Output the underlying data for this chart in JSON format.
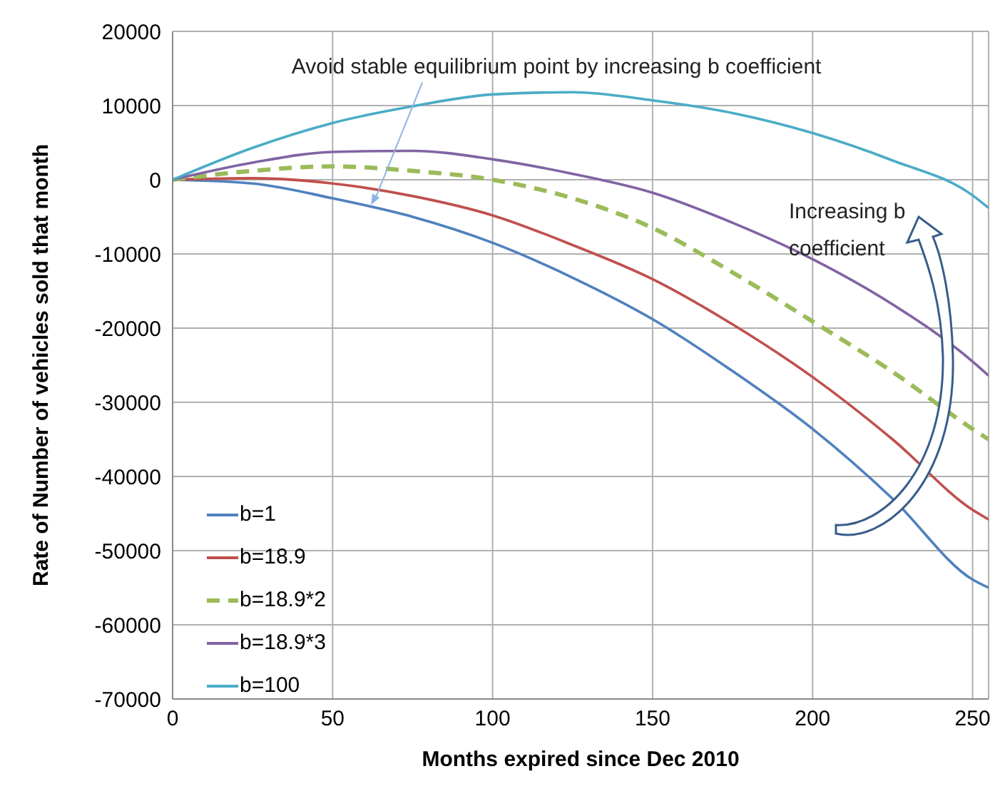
{
  "chart_data": {
    "type": "line",
    "xlabel": "Months expired since Dec 2010",
    "ylabel": "Rate of Number of vehicles sold that month",
    "x": [
      0,
      25,
      50,
      75,
      100,
      125,
      150,
      175,
      200,
      225,
      250,
      255
    ],
    "series": [
      {
        "name": "b=1",
        "color": "#4f81bd",
        "line_style": "solid",
        "values": [
          0,
          -500,
          -2500,
          -5000,
          -8500,
          -13200,
          -18800,
          -25800,
          -33600,
          -43000,
          -53900,
          -55000
        ]
      },
      {
        "name": "b=18.9",
        "color": "#c0504d",
        "line_style": "solid",
        "values": [
          0,
          200,
          -500,
          -2200,
          -4800,
          -8800,
          -13400,
          -19500,
          -26600,
          -35000,
          -44500,
          -45800
        ]
      },
      {
        "name": "b=18.9*2",
        "color": "#9bbb59",
        "line_style": "dashed",
        "values": [
          0,
          1200,
          1800,
          1200,
          0,
          -2500,
          -6500,
          -12500,
          -19100,
          -25900,
          -33600,
          -35000
        ]
      },
      {
        "name": "b=18.9*3",
        "color": "#8064a2",
        "line_style": "solid",
        "values": [
          0,
          2300,
          3750,
          3900,
          2750,
          800,
          -1750,
          -5800,
          -10700,
          -16800,
          -24500,
          -26400
        ]
      },
      {
        "name": "b=100",
        "color": "#4bacc6",
        "line_style": "solid",
        "values": [
          0,
          4300,
          7650,
          9900,
          11500,
          11800,
          10700,
          9000,
          6300,
          2600,
          -2100,
          -3800
        ]
      }
    ],
    "xlim": [
      0,
      255
    ],
    "xticks": [
      0,
      50,
      100,
      150,
      200,
      250
    ],
    "ylim": [
      -70000,
      20000
    ],
    "yticks": [
      -70000,
      -60000,
      -50000,
      -40000,
      -30000,
      -20000,
      -10000,
      0,
      10000,
      20000
    ],
    "grid": true,
    "legend": "bottom left",
    "marker": "none",
    "annotations": [
      {
        "text": "Avoid stable equilibrium point by increasing b coefficient",
        "x": 62,
        "y": -3400
      },
      "Increasing b coefficient"
    ]
  }
}
